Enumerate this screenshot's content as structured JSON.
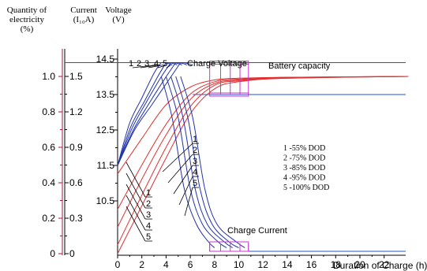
{
  "headers": {
    "quantity": [
      "Quantity of",
      "electricity",
      "(%)"
    ],
    "current": [
      "Current",
      "(I₁₀A)"
    ],
    "voltage": [
      "Voltage",
      "(V)"
    ]
  },
  "chart_data": {
    "type": "line",
    "x_axis": {
      "label": "Duration of Charge (h)",
      "ticks": [
        0,
        2,
        4,
        6,
        8,
        10,
        12,
        14,
        16,
        18,
        20,
        22
      ],
      "range": [
        0,
        24
      ]
    },
    "quantity_axis": {
      "ticks": [
        {
          "v": 0,
          "label": "0"
        },
        {
          "v": 0.2,
          "label": "0.2"
        },
        {
          "v": 0.4,
          "label": "0.4"
        },
        {
          "v": 0.6,
          "label": "0.6"
        },
        {
          "v": 0.8,
          "label": "0.8"
        },
        {
          "v": 1.0,
          "label": "1.0"
        }
      ],
      "range": [
        0,
        1.0
      ]
    },
    "current_axis": {
      "ticks": [
        {
          "v": 0,
          "label": "0"
        },
        {
          "v": 0.3,
          "label": "0.3"
        },
        {
          "v": 0.6,
          "label": "0.6"
        },
        {
          "v": 0.9,
          "label": "0.9"
        },
        {
          "v": 1.2,
          "label": "1.2"
        },
        {
          "v": 1.5,
          "label": "1.5"
        }
      ],
      "range": [
        0,
        1.5
      ]
    },
    "voltage_axis": {
      "ticks": [
        {
          "v": 10.5,
          "label": "10.5"
        },
        {
          "v": 11.5,
          "label": "11.5"
        },
        {
          "v": 12.5,
          "label": "12.5"
        },
        {
          "v": 13.5,
          "label": "13.5"
        },
        {
          "v": 14.5,
          "label": "14.5"
        }
      ],
      "range": [
        9.2,
        14.8
      ]
    },
    "annotations": {
      "charge_voltage": "Charge Voltage",
      "battery_capacity": "Battery capacity",
      "charge_current": "Charge Current",
      "top_numbers": [
        "1",
        "2",
        "3",
        "4",
        "5"
      ],
      "mid_numbers": [
        "1",
        "2",
        "3",
        "4",
        "5"
      ],
      "bottom_numbers": [
        "1",
        "2",
        "3",
        "4",
        "5"
      ]
    },
    "legend": [
      "1 -55% DOD",
      "2 -75%  DOD",
      "3 -85% DOD",
      "4 -95% DOD",
      "5 -100% DOD"
    ],
    "limits": {
      "voltage_limit": 14.4,
      "float_voltage": 13.5,
      "current_limit": 1.5,
      "float_current": 0.02
    },
    "voltage_series": [
      {
        "name": "1",
        "points": [
          [
            0,
            11.5
          ],
          [
            1,
            12.7
          ],
          [
            2,
            13.4
          ],
          [
            3,
            14.1
          ],
          [
            3.6,
            14.4
          ]
        ]
      },
      {
        "name": "2",
        "points": [
          [
            0,
            11.5
          ],
          [
            1.1,
            12.6
          ],
          [
            2.2,
            13.3
          ],
          [
            3.3,
            14.0
          ],
          [
            4.0,
            14.4
          ]
        ]
      },
      {
        "name": "3",
        "points": [
          [
            0,
            11.5
          ],
          [
            1.2,
            12.55
          ],
          [
            2.4,
            13.3
          ],
          [
            3.6,
            14.0
          ],
          [
            4.4,
            14.4
          ]
        ]
      },
      {
        "name": "4",
        "points": [
          [
            0,
            11.5
          ],
          [
            1.3,
            12.5
          ],
          [
            2.6,
            13.25
          ],
          [
            3.9,
            13.95
          ],
          [
            4.8,
            14.4
          ]
        ]
      },
      {
        "name": "5",
        "points": [
          [
            0,
            11.5
          ],
          [
            1.4,
            12.5
          ],
          [
            2.8,
            13.2
          ],
          [
            4.2,
            13.9
          ],
          [
            5.2,
            14.4
          ]
        ]
      }
    ],
    "current_series": [
      {
        "name": "1",
        "points": [
          [
            3.6,
            1.5
          ],
          [
            4.5,
            1.15
          ],
          [
            5.5,
            0.55
          ],
          [
            6.5,
            0.25
          ],
          [
            7.5,
            0.1
          ],
          [
            8,
            0.05
          ]
        ]
      },
      {
        "name": "2",
        "points": [
          [
            4.0,
            1.5
          ],
          [
            5.0,
            1.15
          ],
          [
            6.0,
            0.55
          ],
          [
            7.0,
            0.25
          ],
          [
            8.3,
            0.1
          ],
          [
            9,
            0.05
          ]
        ]
      },
      {
        "name": "3",
        "points": [
          [
            4.4,
            1.5
          ],
          [
            5.4,
            1.15
          ],
          [
            6.4,
            0.55
          ],
          [
            7.4,
            0.25
          ],
          [
            8.8,
            0.1
          ],
          [
            9.5,
            0.05
          ]
        ]
      },
      {
        "name": "4",
        "points": [
          [
            4.8,
            1.5
          ],
          [
            5.8,
            1.15
          ],
          [
            6.8,
            0.55
          ],
          [
            7.8,
            0.25
          ],
          [
            9.2,
            0.1
          ],
          [
            10,
            0.05
          ]
        ]
      },
      {
        "name": "5",
        "points": [
          [
            5.2,
            1.5
          ],
          [
            6.2,
            1.15
          ],
          [
            7.2,
            0.55
          ],
          [
            8.2,
            0.25
          ],
          [
            9.8,
            0.1
          ],
          [
            10.5,
            0.05
          ]
        ]
      }
    ],
    "capacity_series": [
      {
        "name": "1",
        "points": [
          [
            0,
            0.45
          ],
          [
            2,
            0.65
          ],
          [
            4,
            0.84
          ],
          [
            6,
            0.94
          ],
          [
            8,
            0.98
          ],
          [
            10,
            0.99
          ],
          [
            14,
            0.995
          ],
          [
            24,
            1.0
          ]
        ]
      },
      {
        "name": "2",
        "points": [
          [
            0,
            0.25
          ],
          [
            2,
            0.5
          ],
          [
            4,
            0.73
          ],
          [
            6,
            0.9
          ],
          [
            8,
            0.97
          ],
          [
            10,
            0.985
          ],
          [
            14,
            0.995
          ],
          [
            24,
            1.0
          ]
        ]
      },
      {
        "name": "3",
        "points": [
          [
            0,
            0.15
          ],
          [
            2,
            0.42
          ],
          [
            4,
            0.67
          ],
          [
            6,
            0.87
          ],
          [
            8,
            0.96
          ],
          [
            10,
            0.98
          ],
          [
            14,
            0.993
          ],
          [
            24,
            1.0
          ]
        ]
      },
      {
        "name": "4",
        "points": [
          [
            0,
            0.05
          ],
          [
            2,
            0.33
          ],
          [
            4,
            0.6
          ],
          [
            6,
            0.83
          ],
          [
            8,
            0.95
          ],
          [
            10,
            0.975
          ],
          [
            14,
            0.99
          ],
          [
            24,
            1.0
          ]
        ]
      },
      {
        "name": "5",
        "points": [
          [
            0,
            0.0
          ],
          [
            2,
            0.27
          ],
          [
            4,
            0.54
          ],
          [
            6,
            0.79
          ],
          [
            8,
            0.93
          ],
          [
            10,
            0.97
          ],
          [
            14,
            0.99
          ],
          [
            24,
            1.0
          ]
        ]
      }
    ],
    "colors": {
      "axis": "#000000",
      "quantity_axis": "#a01848",
      "voltage": "#2233aa",
      "current": "#2233aa",
      "capacity": "#e03030",
      "limit_line": "#2255cc",
      "marker": "#cc33cc"
    }
  }
}
